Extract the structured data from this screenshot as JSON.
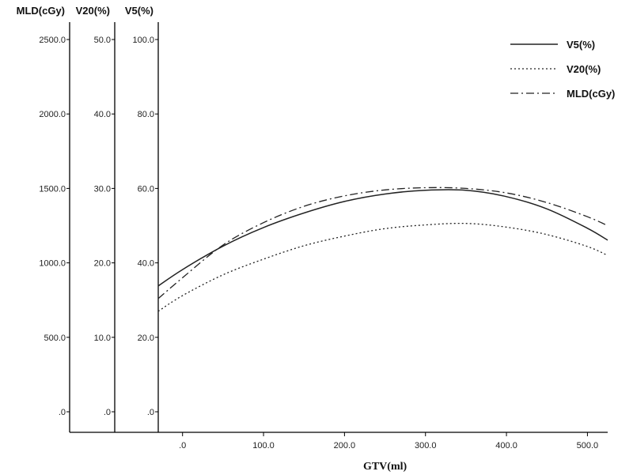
{
  "chart_data": {
    "type": "line",
    "xlabel": "GTV(ml)",
    "xlim": [
      -30,
      525
    ],
    "x_ticks": [
      ".0",
      "100.0",
      "200.0",
      "300.0",
      "400.0",
      "500.0"
    ],
    "y_axes": [
      {
        "id": "mld",
        "title": "MLD(cGy)",
        "range": [
          0,
          2500
        ],
        "ticks": [
          ".0",
          "500.0",
          "1000.0",
          "1500.0",
          "2000.0",
          "2500.0"
        ]
      },
      {
        "id": "v20",
        "title": "V20(%)",
        "range": [
          0,
          50
        ],
        "ticks": [
          ".0",
          "10.0",
          "20.0",
          "30.0",
          "40.0",
          "50.0"
        ]
      },
      {
        "id": "v5",
        "title": "V5(%)",
        "range": [
          0,
          100
        ],
        "ticks": [
          ".0",
          "20.0",
          "40.0",
          "60.0",
          "80.0",
          "100.0"
        ]
      }
    ],
    "legend_position": "top-right",
    "series": [
      {
        "name": "V5(%)",
        "axis": "v5",
        "style": "solid",
        "x": [
          -30,
          0,
          50,
          100,
          150,
          200,
          250,
          300,
          350,
          400,
          450,
          500,
          525
        ],
        "values": [
          33.8,
          38.2,
          44.5,
          49.5,
          53.4,
          56.5,
          58.5,
          59.5,
          59.5,
          57.8,
          54.5,
          49.3,
          46.1
        ]
      },
      {
        "name": "V20(%)",
        "axis": "v20",
        "style": "dotted",
        "x": [
          -30,
          0,
          50,
          100,
          150,
          200,
          250,
          300,
          350,
          400,
          450,
          500,
          525
        ],
        "values": [
          13.5,
          15.6,
          18.4,
          20.5,
          22.3,
          23.6,
          24.6,
          25.1,
          25.3,
          24.8,
          23.8,
          22.2,
          21.0
        ]
      },
      {
        "name": "MLD(cGy)",
        "axis": "mld",
        "style": "dash-dot",
        "x": [
          -30,
          0,
          50,
          100,
          150,
          200,
          250,
          300,
          350,
          400,
          450,
          500,
          525
        ],
        "values": [
          760,
          900,
          1120,
          1270,
          1380,
          1450,
          1490,
          1505,
          1500,
          1470,
          1405,
          1310,
          1250
        ]
      }
    ]
  }
}
